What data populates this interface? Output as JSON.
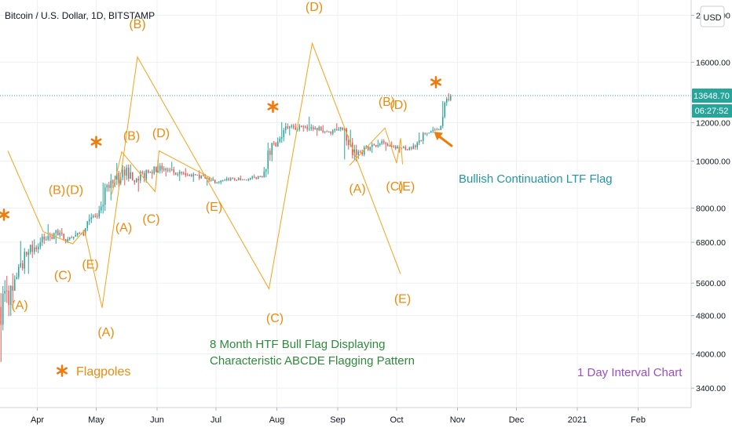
{
  "header": {
    "title": "Bitcoin / U.S. Dollar, 1D, BITSTAMP",
    "currency_button": "USD"
  },
  "price_scale": {
    "ticks": [
      "20000.00",
      "16000.00",
      "12000.00",
      "10000.00",
      "8000.00",
      "6800.00",
      "5600.00",
      "4800.00",
      "4000.00",
      "3400.00"
    ],
    "last_price": "13648.70",
    "countdown": "06:27:52"
  },
  "time_axis": {
    "ticks": [
      "Apr",
      "May",
      "Jun",
      "Jul",
      "Aug",
      "Sep",
      "Oct",
      "Nov",
      "Dec",
      "2021",
      "Feb"
    ]
  },
  "colors": {
    "up": "#26a69a",
    "down": "#ef5350",
    "pattern": "#f7a21b",
    "htf_text": "#2e8b3a",
    "ltf_text": "#2196a8",
    "interval_text": "#9c4fbf"
  },
  "chart_data": {
    "type": "candlestick",
    "symbol": "Bitcoin / U.S. Dollar",
    "interval": "1D",
    "exchange": "BITSTAMP",
    "scale": "log",
    "ylim": [
      3100,
      21500
    ],
    "x_range": [
      "2020-03-13",
      "2021-02-28"
    ],
    "last_price": 13648.7,
    "weekly_ohlc": [
      {
        "date": "2020-03-13",
        "o": 5000,
        "h": 5900,
        "l": 3850,
        "c": 5400
      },
      {
        "date": "2020-03-20",
        "o": 5400,
        "h": 6900,
        "l": 5700,
        "c": 6400
      },
      {
        "date": "2020-03-27",
        "o": 6400,
        "h": 6950,
        "l": 5850,
        "c": 6800
      },
      {
        "date": "2020-04-03",
        "o": 6800,
        "h": 7450,
        "l": 6600,
        "c": 7100
      },
      {
        "date": "2020-04-10",
        "o": 7100,
        "h": 7300,
        "l": 6750,
        "c": 6900
      },
      {
        "date": "2020-04-17",
        "o": 6900,
        "h": 7200,
        "l": 6850,
        "c": 7100
      },
      {
        "date": "2020-04-24",
        "o": 7100,
        "h": 7800,
        "l": 7000,
        "c": 7700
      },
      {
        "date": "2020-05-01",
        "o": 7700,
        "h": 9100,
        "l": 7600,
        "c": 8800
      },
      {
        "date": "2020-05-08",
        "o": 8800,
        "h": 10000,
        "l": 8300,
        "c": 9600
      },
      {
        "date": "2020-05-15",
        "o": 9600,
        "h": 9900,
        "l": 8800,
        "c": 9200
      },
      {
        "date": "2020-05-22",
        "o": 9200,
        "h": 9600,
        "l": 8650,
        "c": 9500
      },
      {
        "date": "2020-05-29",
        "o": 9500,
        "h": 10100,
        "l": 9200,
        "c": 9650
      },
      {
        "date": "2020-06-05",
        "o": 9650,
        "h": 10000,
        "l": 9300,
        "c": 9400
      },
      {
        "date": "2020-06-12",
        "o": 9400,
        "h": 9700,
        "l": 9100,
        "c": 9300
      },
      {
        "date": "2020-06-19",
        "o": 9300,
        "h": 9600,
        "l": 9000,
        "c": 9200
      },
      {
        "date": "2020-06-26",
        "o": 9200,
        "h": 9300,
        "l": 8900,
        "c": 9050
      },
      {
        "date": "2020-07-03",
        "o": 9050,
        "h": 9300,
        "l": 8950,
        "c": 9200
      },
      {
        "date": "2020-07-10",
        "o": 9200,
        "h": 9350,
        "l": 9100,
        "c": 9150
      },
      {
        "date": "2020-07-17",
        "o": 9150,
        "h": 9400,
        "l": 9050,
        "c": 9300
      },
      {
        "date": "2020-07-24",
        "o": 9300,
        "h": 11000,
        "l": 9250,
        "c": 10900
      },
      {
        "date": "2020-07-31",
        "o": 10900,
        "h": 12100,
        "l": 10700,
        "c": 11700
      },
      {
        "date": "2020-08-07",
        "o": 11700,
        "h": 12000,
        "l": 11300,
        "c": 11800
      },
      {
        "date": "2020-08-14",
        "o": 11800,
        "h": 12400,
        "l": 11400,
        "c": 11700
      },
      {
        "date": "2020-08-21",
        "o": 11700,
        "h": 11900,
        "l": 11200,
        "c": 11500
      },
      {
        "date": "2020-08-28",
        "o": 11500,
        "h": 12000,
        "l": 11300,
        "c": 11600
      },
      {
        "date": "2020-09-04",
        "o": 11600,
        "h": 11700,
        "l": 9900,
        "c": 10300
      },
      {
        "date": "2020-09-11",
        "o": 10300,
        "h": 10800,
        "l": 10100,
        "c": 10700
      },
      {
        "date": "2020-09-18",
        "o": 10700,
        "h": 11100,
        "l": 10400,
        "c": 10900
      },
      {
        "date": "2020-09-25",
        "o": 10900,
        "h": 11000,
        "l": 10500,
        "c": 10700
      },
      {
        "date": "2020-10-02",
        "o": 10700,
        "h": 10800,
        "l": 10400,
        "c": 10600
      },
      {
        "date": "2020-10-09",
        "o": 10600,
        "h": 11500,
        "l": 10550,
        "c": 11400
      },
      {
        "date": "2020-10-16",
        "o": 11400,
        "h": 11800,
        "l": 11200,
        "c": 11600
      },
      {
        "date": "2020-10-23",
        "o": 11600,
        "h": 13400,
        "l": 11500,
        "c": 13200
      },
      {
        "date": "2020-10-26",
        "o": 13200,
        "h": 13850,
        "l": 12900,
        "c": 13648.7
      }
    ],
    "pattern_lines": [
      {
        "points": [
          [
            "2020-03-17",
            10500
          ],
          [
            "2020-04-04",
            7150
          ],
          [
            "2020-04-19",
            6750
          ],
          [
            "2020-04-25",
            7200
          ],
          [
            "2020-05-04",
            4980
          ]
        ]
      },
      {
        "points": [
          [
            "2020-05-04",
            4980
          ],
          [
            "2020-05-22",
            16400
          ],
          [
            "2020-07-28",
            5450
          ],
          [
            "2020-08-19",
            17500
          ],
          [
            "2020-10-03",
            5850
          ]
        ]
      },
      {
        "points": [
          [
            "2020-05-09",
            8550
          ],
          [
            "2020-05-14",
            10450
          ],
          [
            "2020-05-31",
            8650
          ],
          [
            "2020-06-02",
            10500
          ],
          [
            "2020-06-30",
            9150
          ]
        ]
      },
      {
        "points": [
          [
            "2020-09-07",
            9800
          ],
          [
            "2020-09-25",
            11700
          ],
          [
            "2020-10-01",
            9900
          ],
          [
            "2020-10-03",
            11150
          ],
          [
            "2020-10-04",
            9850
          ]
        ]
      }
    ],
    "annotations": [
      {
        "text": "(D)",
        "x": "2020-08-20",
        "y": 20400
      },
      {
        "text": "(B)",
        "x": "2020-05-22",
        "y": 18800
      },
      {
        "text": "(B)",
        "x": "2020-09-26",
        "y": 13000
      },
      {
        "text": "(D)",
        "x": "2020-10-02",
        "y": 12800
      },
      {
        "text": "(B)",
        "x": "2020-05-19",
        "y": 11050
      },
      {
        "text": "(D)",
        "x": "2020-06-03",
        "y": 11200
      },
      {
        "text": "(B)",
        "x": "2020-04-11",
        "y": 8550
      },
      {
        "text": "(D)",
        "x": "2020-04-20",
        "y": 8550
      },
      {
        "text": "(A)",
        "x": "2020-05-15",
        "y": 7150
      },
      {
        "text": "(C)",
        "x": "2020-05-29",
        "y": 7450
      },
      {
        "text": "(E)",
        "x": "2020-06-30",
        "y": 7900
      },
      {
        "text": "(A)",
        "x": "2020-09-11",
        "y": 8600
      },
      {
        "text": "(C)",
        "x": "2020-09-30",
        "y": 8700
      },
      {
        "text": "(E)",
        "x": "2020-10-06",
        "y": 8700
      },
      {
        "text": "(E)",
        "x": "2020-04-28",
        "y": 6000
      },
      {
        "text": "(C)",
        "x": "2020-04-14",
        "y": 5700
      },
      {
        "text": "(A)",
        "x": "2020-03-23",
        "y": 4950
      },
      {
        "text": "(A)",
        "x": "2020-05-06",
        "y": 4350
      },
      {
        "text": "(C)",
        "x": "2020-07-31",
        "y": 4650
      },
      {
        "text": "(E)",
        "x": "2020-10-04",
        "y": 5100
      }
    ],
    "flagpole_markers": [
      {
        "x": "2020-03-15",
        "y": 7750
      },
      {
        "x": "2020-05-01",
        "y": 10950
      },
      {
        "x": "2020-07-30",
        "y": 12950
      },
      {
        "x": "2020-10-21",
        "y": 14550
      }
    ],
    "arrow": {
      "from": [
        "2020-10-29",
        10750
      ],
      "to": [
        "2020-10-20",
        11500
      ]
    },
    "texts": {
      "legend_label": "Flagpoles",
      "htf_line1": "8 Month HTF Bull Flag Displaying",
      "htf_line2": "Characteristic ABCDE Flagging Pattern",
      "ltf": "Bullish Continuation LTF Flag",
      "interval": "1 Day Interval Chart"
    }
  }
}
